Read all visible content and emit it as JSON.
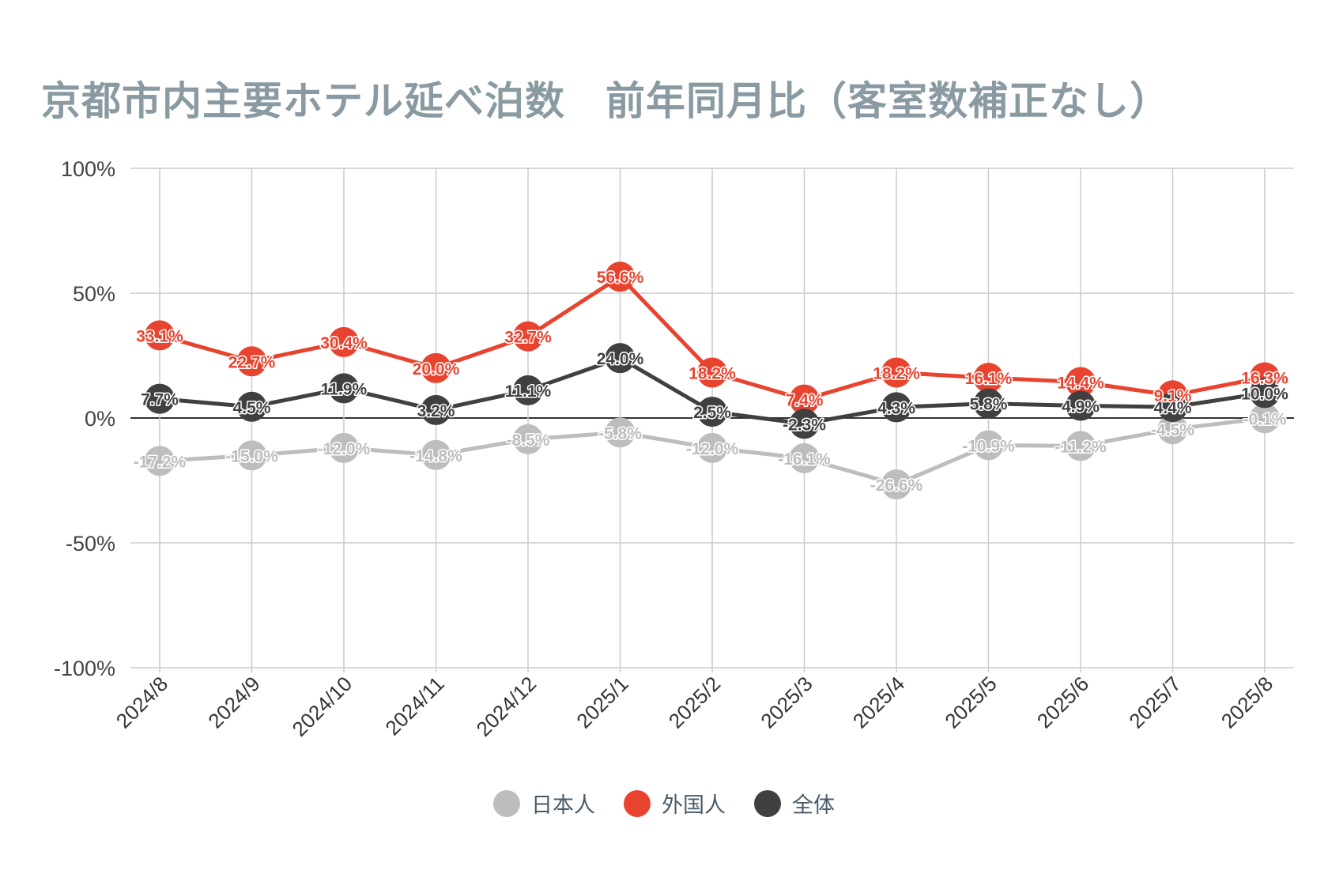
{
  "chart_data": {
    "type": "line",
    "title": "京都市内主要ホテル延べ泊数　前年同月比（客室数補正なし）",
    "categories": [
      "2024/8",
      "2024/9",
      "2024/10",
      "2024/11",
      "2024/12",
      "2025/1",
      "2025/2",
      "2025/3",
      "2025/4",
      "2025/5",
      "2025/6",
      "2025/7",
      "2025/8"
    ],
    "ylim": [
      -100,
      100
    ],
    "yticks": [
      100,
      50,
      0,
      -50,
      -100
    ],
    "ytick_labels": [
      "100%",
      "50%",
      "0%",
      "-50%",
      "-100%"
    ],
    "grid": true,
    "legend": "bottom",
    "series": [
      {
        "name": "日本人",
        "color": "#bdbdbd",
        "values": [
          -17.2,
          -15.0,
          -12.0,
          -14.8,
          -8.5,
          -5.8,
          -12.0,
          -16.1,
          -26.6,
          -10.9,
          -11.2,
          -4.5,
          -0.1
        ],
        "labels": [
          "-17.2%",
          "-15.0%",
          "-12.0%",
          "-14.8%",
          "-8.5%",
          "-5.8%",
          "-12.0%",
          "-16.1%",
          "-26.6%",
          "-10.9%",
          "-11.2%",
          "-4.5%",
          "-0.1%"
        ]
      },
      {
        "name": "外国人",
        "color": "#e8432e",
        "values": [
          33.1,
          22.7,
          30.4,
          20.0,
          32.7,
          56.6,
          18.2,
          7.4,
          18.2,
          16.1,
          14.4,
          9.1,
          16.3
        ],
        "labels": [
          "33.1%",
          "22.7%",
          "30.4%",
          "20.0%",
          "32.7%",
          "56.6%",
          "18.2%",
          "7.4%",
          "18.2%",
          "16.1%",
          "14.4%",
          "9.1%",
          "16.3%"
        ]
      },
      {
        "name": "全体",
        "color": "#404040",
        "values": [
          7.7,
          4.5,
          11.9,
          3.2,
          11.1,
          24.0,
          2.5,
          -2.3,
          4.3,
          5.8,
          4.9,
          4.4,
          10.0
        ],
        "labels": [
          "7.7%",
          "4.5%",
          "11.9%",
          "3.2%",
          "11.1%",
          "24.0%",
          "2.5%",
          "-2.3%",
          "4.3%",
          "5.8%",
          "4.9%",
          "4.4%",
          "10.0%"
        ]
      }
    ]
  }
}
